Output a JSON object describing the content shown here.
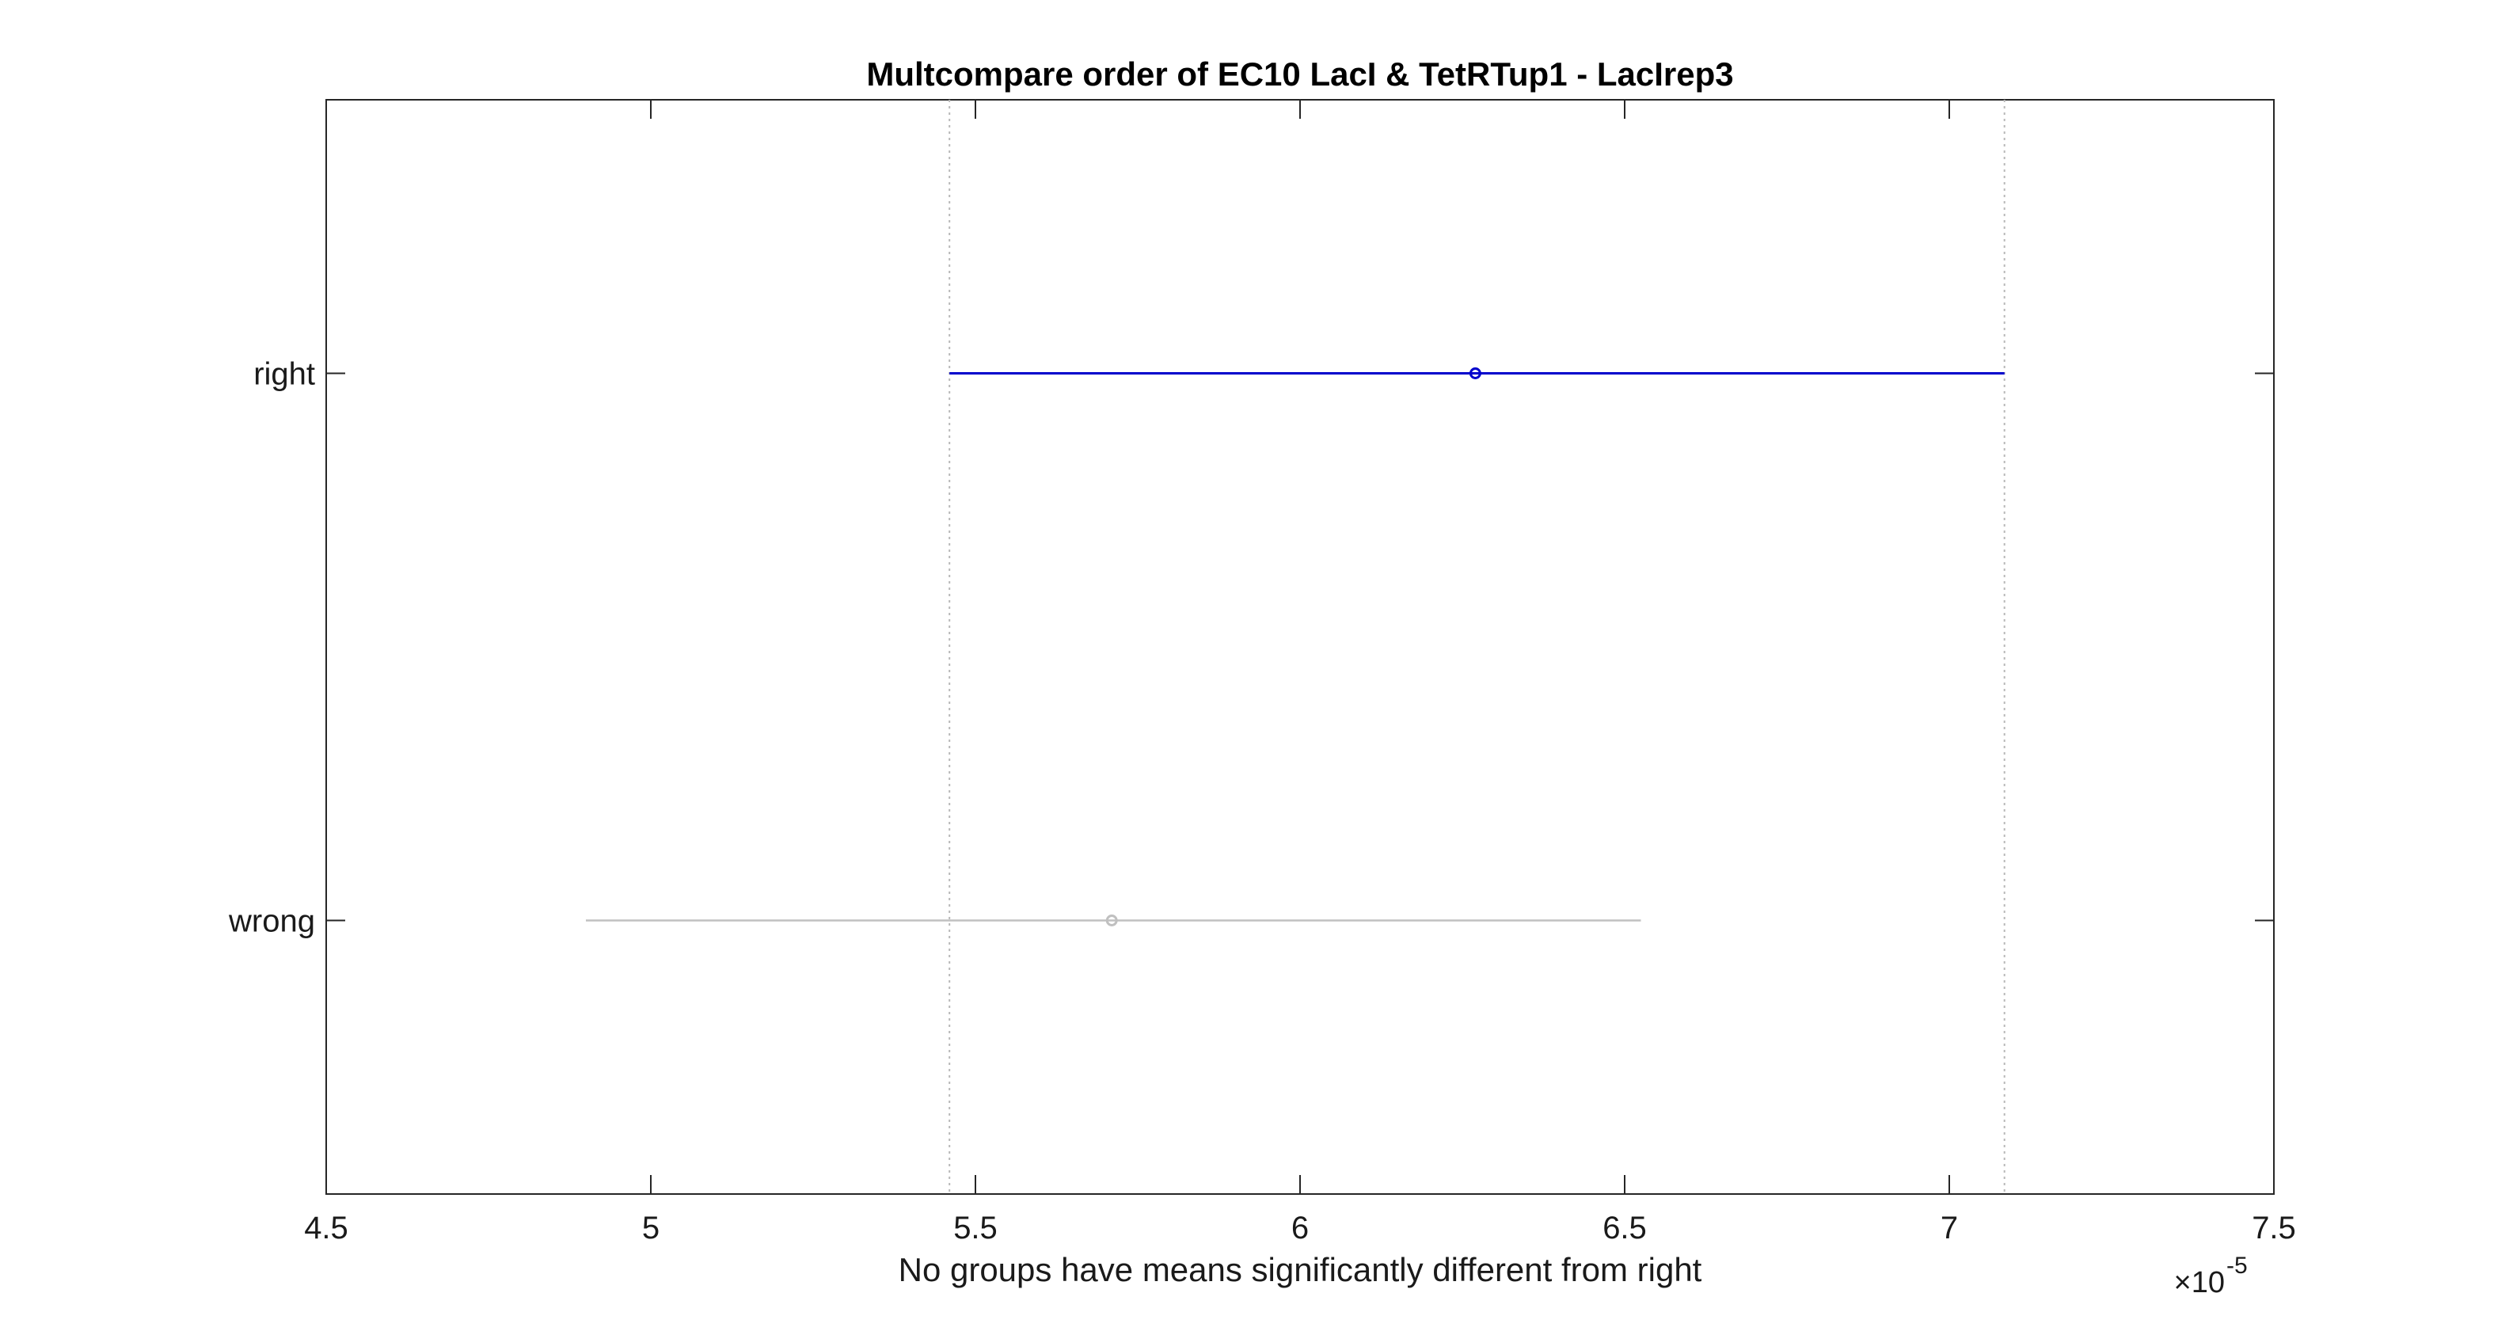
{
  "chart_data": {
    "type": "errorbar-horizontal",
    "title": "Multcompare order of EC10 LacI & TetRTup1 - LacIrep3",
    "xlabel": "No groups have means significantly different from right",
    "ylabel": "",
    "xlim": [
      4.5,
      7.5
    ],
    "x_exponent_label": "×10",
    "x_exponent": "-5",
    "xticks": [
      4.5,
      5,
      5.5,
      6,
      6.5,
      7,
      7.5
    ],
    "xtick_labels": [
      "4.5",
      "5",
      "5.5",
      "6",
      "6.5",
      "7",
      "7.5"
    ],
    "groups": [
      {
        "label": "right",
        "mean": 6.27,
        "lower": 5.46,
        "upper": 7.085,
        "color": "#0000cc",
        "highlighted": true
      },
      {
        "label": "wrong",
        "mean": 5.71,
        "lower": 4.9,
        "upper": 6.525,
        "color": "#c0c0c0",
        "highlighted": false
      }
    ],
    "reference_lines": [
      5.46,
      7.085
    ],
    "grid": false,
    "legend": "none"
  }
}
